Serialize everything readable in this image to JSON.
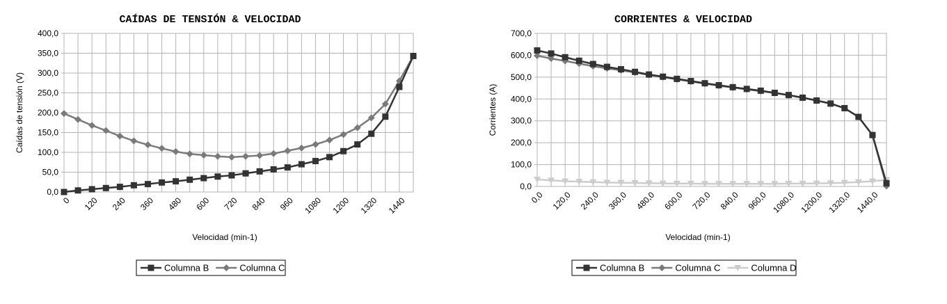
{
  "chart_data": [
    {
      "type": "line",
      "title": "CAÍDAS DE TENSIÓN & VELOCIDAD",
      "xlabel": "Velocidad (min-1)",
      "ylabel": "Caídas de tensión (V)",
      "x_tick_labels": [
        "0",
        "120",
        "240",
        "360",
        "480",
        "600",
        "720",
        "840",
        "960",
        "1080",
        "1200",
        "1320",
        "1440"
      ],
      "y_tick_labels": [
        "0,0",
        "50,0",
        "100,0",
        "150,0",
        "200,0",
        "250,0",
        "300,0",
        "350,0",
        "400,0"
      ],
      "ylim": [
        0,
        400
      ],
      "x": [
        0,
        60,
        120,
        180,
        240,
        300,
        360,
        420,
        480,
        540,
        600,
        660,
        720,
        780,
        840,
        900,
        960,
        1020,
        1080,
        1140,
        1200,
        1260,
        1320,
        1380,
        1440,
        1500
      ],
      "grid": true,
      "legend_position": "bottom",
      "series": [
        {
          "name": "Columna B",
          "color": "#333333",
          "marker": "square",
          "values": [
            0,
            4,
            7,
            10,
            13,
            17,
            20,
            24,
            27,
            31,
            35,
            39,
            42,
            47,
            52,
            57,
            62,
            70,
            78,
            88,
            103,
            120,
            147,
            190,
            265,
            343
          ]
        },
        {
          "name": "Columna C",
          "color": "#7a7a7a",
          "marker": "diamond",
          "values": [
            198,
            183,
            168,
            155,
            141,
            129,
            119,
            110,
            102,
            96,
            93,
            90,
            88,
            90,
            92,
            97,
            104,
            111,
            120,
            131,
            145,
            162,
            187,
            222,
            280,
            343
          ]
        }
      ]
    },
    {
      "type": "line",
      "title": "CORRIENTES & VELOCIDAD",
      "xlabel": "Velocidad (min-1)",
      "ylabel": "Corrientes (A)",
      "x_tick_labels": [
        "0,0",
        "120,0",
        "240,0",
        "360,0",
        "480,0",
        "600,0",
        "720,0",
        "840,0",
        "960,0",
        "1080,0",
        "1200,0",
        "1320,0",
        "1440,0"
      ],
      "y_tick_labels": [
        "0,0",
        "100,0",
        "200,0",
        "300,0",
        "400,0",
        "500,0",
        "600,0",
        "700,0"
      ],
      "ylim": [
        0,
        700
      ],
      "x": [
        0,
        60,
        120,
        180,
        240,
        300,
        360,
        420,
        480,
        540,
        600,
        660,
        720,
        780,
        840,
        900,
        960,
        1020,
        1080,
        1140,
        1200,
        1260,
        1320,
        1380,
        1440,
        1500
      ],
      "grid": true,
      "legend_position": "bottom",
      "series": [
        {
          "name": "Columna B",
          "color": "#333333",
          "marker": "square",
          "values": [
            622,
            608,
            591,
            575,
            560,
            547,
            536,
            524,
            512,
            502,
            492,
            482,
            472,
            463,
            454,
            446,
            438,
            428,
            418,
            406,
            393,
            379,
            358,
            318,
            235,
            15
          ]
        },
        {
          "name": "Columna C",
          "color": "#7a7a7a",
          "marker": "diamond",
          "values": [
            598,
            585,
            574,
            562,
            550,
            540,
            531,
            521,
            510,
            500,
            490,
            480,
            470,
            461,
            452,
            444,
            436,
            427,
            417,
            406,
            393,
            379,
            358,
            318,
            235,
            2
          ]
        },
        {
          "name": "Columna D",
          "color": "#cccccc",
          "marker": "triangle-down",
          "values": [
            32,
            28,
            24,
            22,
            20,
            18,
            17,
            16,
            15,
            14,
            13,
            13,
            12,
            12,
            12,
            12,
            12,
            12,
            13,
            13,
            14,
            15,
            17,
            20,
            24,
            30
          ]
        }
      ]
    }
  ]
}
